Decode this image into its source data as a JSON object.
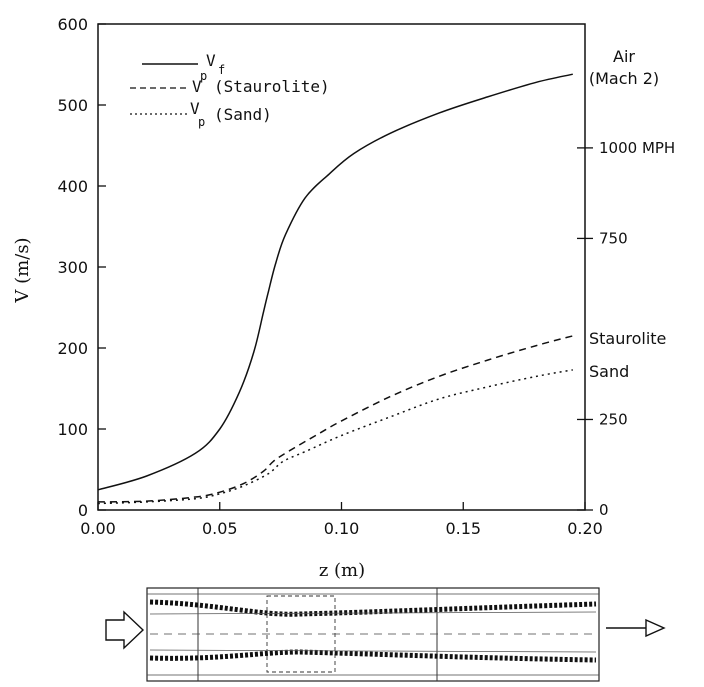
{
  "chart_data": {
    "type": "line",
    "xlabel": "z (m)",
    "ylabel": "V (m/s)",
    "xlim": [
      0,
      0.2
    ],
    "ylim": [
      0,
      600
    ],
    "x_ticks": [
      "0.00",
      "0.05",
      "0.10",
      "0.15",
      "0.20"
    ],
    "y_ticks": [
      "0",
      "100",
      "200",
      "300",
      "400",
      "500",
      "600"
    ],
    "right_axis": {
      "unit": "MPH",
      "ticks": [
        {
          "value": 0,
          "label": "0"
        },
        {
          "value": 250,
          "label": "250"
        },
        {
          "value": 750,
          "label": "750"
        },
        {
          "value": 1000,
          "label": "1000 MPH"
        }
      ]
    },
    "grid": false,
    "legend_position": "top-left",
    "series": [
      {
        "name": "V_f",
        "style": "solid",
        "x": [
          0,
          0.02,
          0.04,
          0.05,
          0.058,
          0.064,
          0.068,
          0.07,
          0.073,
          0.077,
          0.085,
          0.095,
          0.105,
          0.12,
          0.14,
          0.16,
          0.18,
          0.195
        ],
        "y": [
          25,
          42,
          70,
          100,
          145,
          195,
          245,
          270,
          305,
          340,
          385,
          415,
          440,
          465,
          490,
          510,
          528,
          538
        ]
      },
      {
        "name": "V_p (Staurolite)",
        "style": "dashed",
        "x": [
          0,
          0.02,
          0.04,
          0.05,
          0.06,
          0.068,
          0.072,
          0.078,
          0.09,
          0.1,
          0.12,
          0.14,
          0.16,
          0.18,
          0.195
        ],
        "y": [
          10,
          11,
          16,
          22,
          33,
          48,
          60,
          72,
          93,
          110,
          140,
          165,
          185,
          203,
          215
        ]
      },
      {
        "name": "V_p (Sand)",
        "style": "dotted",
        "x": [
          0,
          0.02,
          0.04,
          0.05,
          0.06,
          0.07,
          0.076,
          0.085,
          0.1,
          0.12,
          0.14,
          0.16,
          0.18,
          0.195
        ],
        "y": [
          8,
          10,
          14,
          20,
          30,
          45,
          60,
          72,
          92,
          115,
          137,
          152,
          165,
          173
        ]
      }
    ],
    "annotations": {
      "air_line1": "Air",
      "air_line2": "(Mach 2)",
      "staurolite": "Staurolite",
      "sand": "Sand"
    },
    "legend": {
      "vf_main": "V",
      "vf_sub": "f",
      "vp_main": "V",
      "vp_sup": "p",
      "vp_sub": "p",
      "staurolite_paren": "(Staurolite)",
      "sand_paren": "(Sand)"
    }
  },
  "nozzle": {
    "inlet_arrow": "inlet-arrow-icon",
    "outlet_arrow": "outlet-arrow-icon"
  }
}
